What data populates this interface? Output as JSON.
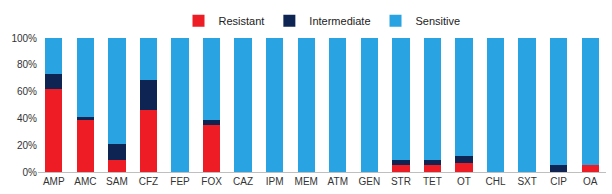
{
  "chart_data": {
    "type": "bar",
    "stacked": true,
    "categories": [
      "AMP",
      "AMC",
      "SAM",
      "CFZ",
      "FEP",
      "FOX",
      "CAZ",
      "IPM",
      "MEM",
      "ATM",
      "GEN",
      "STR",
      "TET",
      "OT",
      "CHL",
      "SXT",
      "CIP",
      "OA"
    ],
    "series": [
      {
        "name": "Resistant",
        "color": "#ee1c25",
        "values": [
          62,
          39,
          9,
          46,
          0,
          35,
          0,
          0,
          0,
          0,
          0,
          5,
          5,
          7,
          0,
          0,
          0,
          5
        ]
      },
      {
        "name": "Intermediate",
        "color": "#0e2453",
        "values": [
          11,
          2,
          12,
          23,
          0,
          4,
          0,
          0,
          0,
          0,
          0,
          4,
          4,
          5,
          0,
          0,
          5,
          0
        ]
      },
      {
        "name": "Sensitive",
        "color": "#29a3e2",
        "values": [
          27,
          59,
          79,
          31,
          100,
          61,
          100,
          100,
          100,
          100,
          100,
          91,
          91,
          88,
          100,
          100,
          95,
          95
        ]
      }
    ],
    "ylim": [
      0,
      100
    ],
    "yticks": [
      {
        "value": 0,
        "label": "0%"
      },
      {
        "value": 20,
        "label": "20%"
      },
      {
        "value": 40,
        "label": "40%"
      },
      {
        "value": 60,
        "label": "60%"
      },
      {
        "value": 80,
        "label": "80%"
      },
      {
        "value": 100,
        "label": "100%"
      }
    ],
    "grid": false,
    "legend": "top"
  }
}
